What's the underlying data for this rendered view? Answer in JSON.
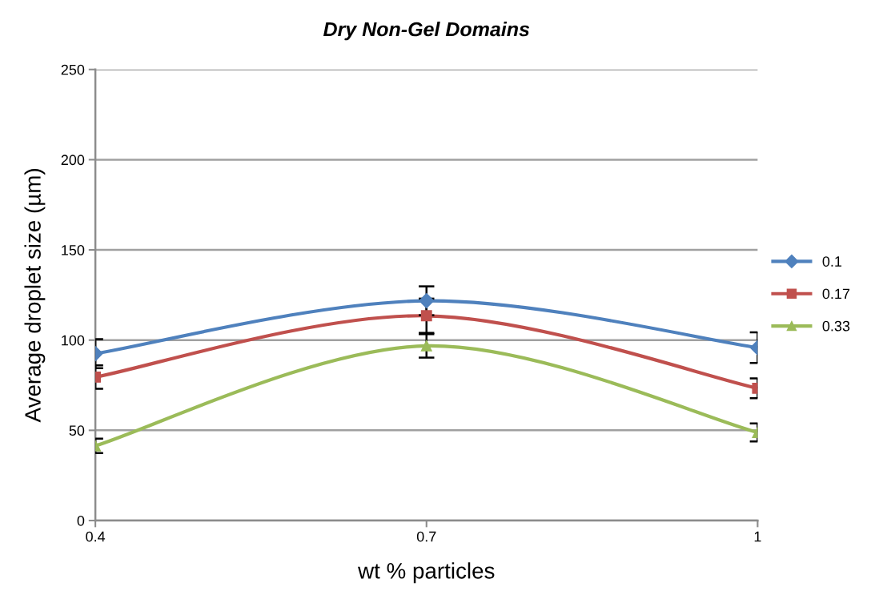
{
  "chart_data": {
    "type": "line",
    "title": "Dry Non-Gel Domains",
    "xlabel": "wt % particles",
    "ylabel": "Average droplet size (µm)",
    "categories": [
      "0.4",
      "0.7",
      "1"
    ],
    "series": [
      {
        "name": "0.1",
        "color": "#4f81bd",
        "marker": "diamond",
        "values": [
          92.5,
          121.8,
          95.8
        ],
        "errors": [
          8,
          8,
          8.5
        ]
      },
      {
        "name": "0.17",
        "color": "#c0504d",
        "marker": "square",
        "values": [
          79.5,
          113.5,
          73.3
        ],
        "errors": [
          6.5,
          9.5,
          5.5
        ]
      },
      {
        "name": "0.33",
        "color": "#9bbb59",
        "marker": "triangle",
        "values": [
          41.4,
          96.8,
          48.8
        ],
        "errors": [
          4,
          6.5,
          5
        ]
      }
    ],
    "ylim": [
      0,
      250
    ],
    "yticks": [
      0,
      50,
      100,
      150,
      200,
      250
    ],
    "grid": "y",
    "legend": "right",
    "line_style": "solid"
  }
}
